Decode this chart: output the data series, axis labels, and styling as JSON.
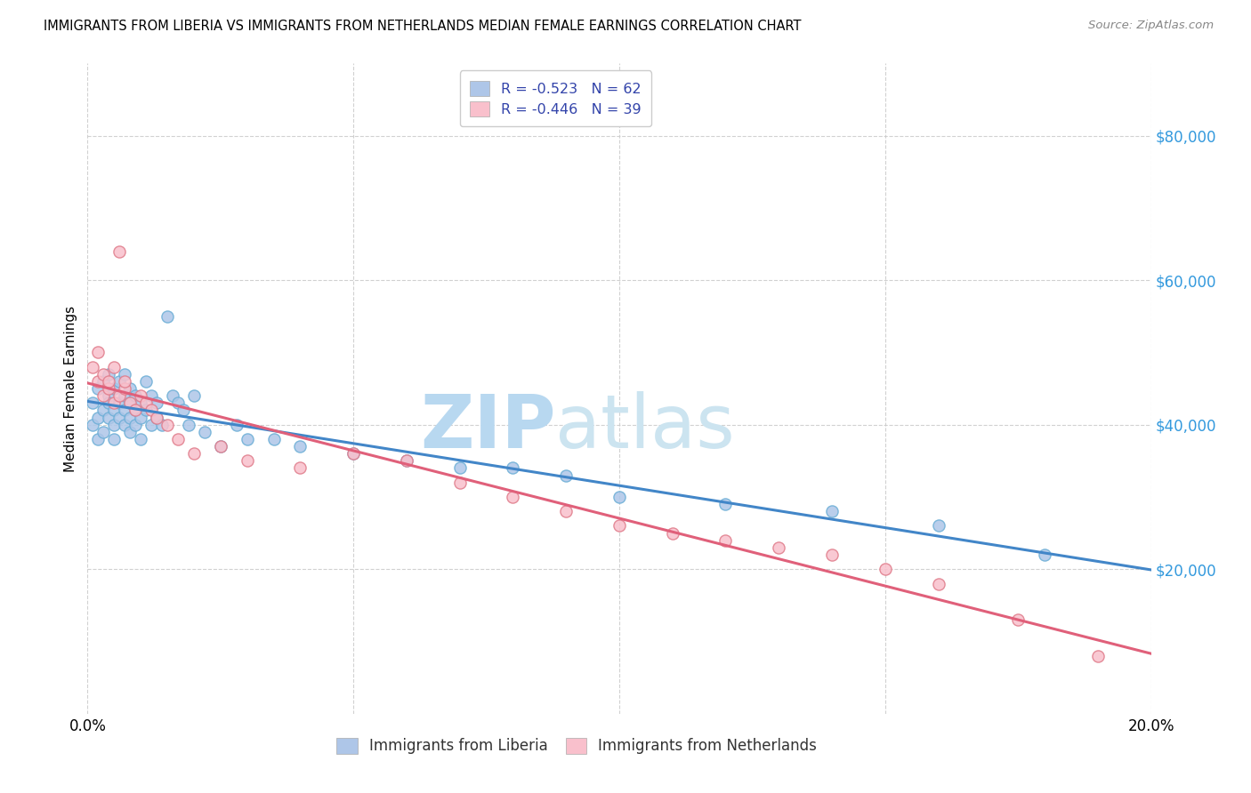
{
  "title": "IMMIGRANTS FROM LIBERIA VS IMMIGRANTS FROM NETHERLANDS MEDIAN FEMALE EARNINGS CORRELATION CHART",
  "source": "Source: ZipAtlas.com",
  "ylabel": "Median Female Earnings",
  "xlim": [
    0.0,
    0.2
  ],
  "ylim": [
    0,
    90000
  ],
  "yticks": [
    20000,
    40000,
    60000,
    80000
  ],
  "ytick_labels": [
    "$20,000",
    "$40,000",
    "$60,000",
    "$80,000"
  ],
  "xticks": [
    0.0,
    0.05,
    0.1,
    0.15,
    0.2
  ],
  "xtick_labels": [
    "0.0%",
    "",
    "",
    "",
    "20.0%"
  ],
  "liberia_color": "#aec6e8",
  "liberia_edge": "#6baed6",
  "netherlands_color": "#f9c0cc",
  "netherlands_edge": "#e07b8a",
  "liberia_line_color": "#4286c8",
  "netherlands_line_color": "#e0607a",
  "watermark_zip": "ZIP",
  "watermark_atlas": "atlas",
  "watermark_color": "#cde4f5",
  "liberia_x": [
    0.001,
    0.001,
    0.002,
    0.002,
    0.002,
    0.003,
    0.003,
    0.003,
    0.004,
    0.004,
    0.004,
    0.004,
    0.005,
    0.005,
    0.005,
    0.005,
    0.006,
    0.006,
    0.006,
    0.007,
    0.007,
    0.007,
    0.007,
    0.008,
    0.008,
    0.008,
    0.008,
    0.009,
    0.009,
    0.009,
    0.01,
    0.01,
    0.01,
    0.011,
    0.011,
    0.012,
    0.012,
    0.013,
    0.013,
    0.014,
    0.015,
    0.016,
    0.017,
    0.018,
    0.019,
    0.02,
    0.022,
    0.025,
    0.028,
    0.03,
    0.035,
    0.04,
    0.05,
    0.06,
    0.07,
    0.08,
    0.09,
    0.1,
    0.12,
    0.14,
    0.16,
    0.18
  ],
  "liberia_y": [
    40000,
    43000,
    41000,
    45000,
    38000,
    42000,
    46000,
    39000,
    44000,
    43000,
    47000,
    41000,
    42000,
    45000,
    40000,
    38000,
    43000,
    46000,
    41000,
    44000,
    42000,
    47000,
    40000,
    43000,
    45000,
    41000,
    39000,
    44000,
    42000,
    40000,
    41000,
    43000,
    38000,
    46000,
    42000,
    44000,
    40000,
    43000,
    41000,
    40000,
    55000,
    44000,
    43000,
    42000,
    40000,
    44000,
    39000,
    37000,
    40000,
    38000,
    38000,
    37000,
    36000,
    35000,
    34000,
    34000,
    33000,
    30000,
    29000,
    28000,
    26000,
    22000
  ],
  "netherlands_x": [
    0.001,
    0.002,
    0.002,
    0.003,
    0.003,
    0.004,
    0.004,
    0.005,
    0.005,
    0.006,
    0.006,
    0.007,
    0.007,
    0.008,
    0.009,
    0.01,
    0.011,
    0.012,
    0.013,
    0.015,
    0.017,
    0.02,
    0.025,
    0.03,
    0.04,
    0.05,
    0.06,
    0.07,
    0.08,
    0.09,
    0.1,
    0.11,
    0.12,
    0.13,
    0.14,
    0.15,
    0.16,
    0.175,
    0.19
  ],
  "netherlands_y": [
    48000,
    46000,
    50000,
    44000,
    47000,
    45000,
    46000,
    48000,
    43000,
    44000,
    64000,
    45000,
    46000,
    43000,
    42000,
    44000,
    43000,
    42000,
    41000,
    40000,
    38000,
    36000,
    37000,
    35000,
    34000,
    36000,
    35000,
    32000,
    30000,
    28000,
    26000,
    25000,
    24000,
    23000,
    22000,
    20000,
    18000,
    13000,
    8000
  ]
}
